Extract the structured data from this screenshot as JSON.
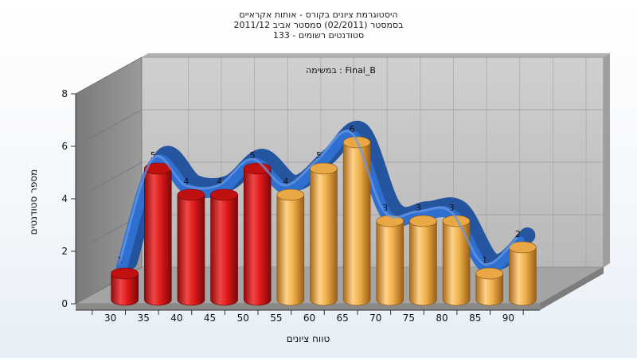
{
  "chart_data": {
    "type": "bar",
    "title_lines": [
      "היסטוגרמת ציונים בקורס - אותות אקראיים",
      "בסמסטר  (02/2011)  סמסטר אביב 2011/12",
      "סטודנטים רשומים - 133"
    ],
    "subtitle": "במשימה : Final_B",
    "xlabel": "טווח ציונים",
    "ylabel": "מספר סטודנטים",
    "categories": [
      "30",
      "35",
      "40",
      "45",
      "50",
      "55",
      "60",
      "65",
      "70",
      "75",
      "80",
      "85",
      "90"
    ],
    "values": [
      1,
      5,
      4,
      4,
      5,
      4,
      5,
      6,
      3,
      3,
      3,
      1,
      2
    ],
    "bar_colors": [
      "red",
      "red",
      "red",
      "red",
      "red",
      "orange",
      "orange",
      "orange",
      "orange",
      "orange",
      "orange",
      "orange",
      "orange"
    ],
    "y_ticks": [
      0,
      2,
      4,
      6,
      8
    ],
    "ylim": [
      0,
      8
    ],
    "grid": true,
    "has_trend_ribbon": true,
    "colors": {
      "red_bar": "#e01a1a",
      "orange_bar": "#f0b04a",
      "ribbon": "#2f6fd0",
      "wall": "#8c8c8c",
      "back_wall": "#c4c4c4"
    }
  }
}
